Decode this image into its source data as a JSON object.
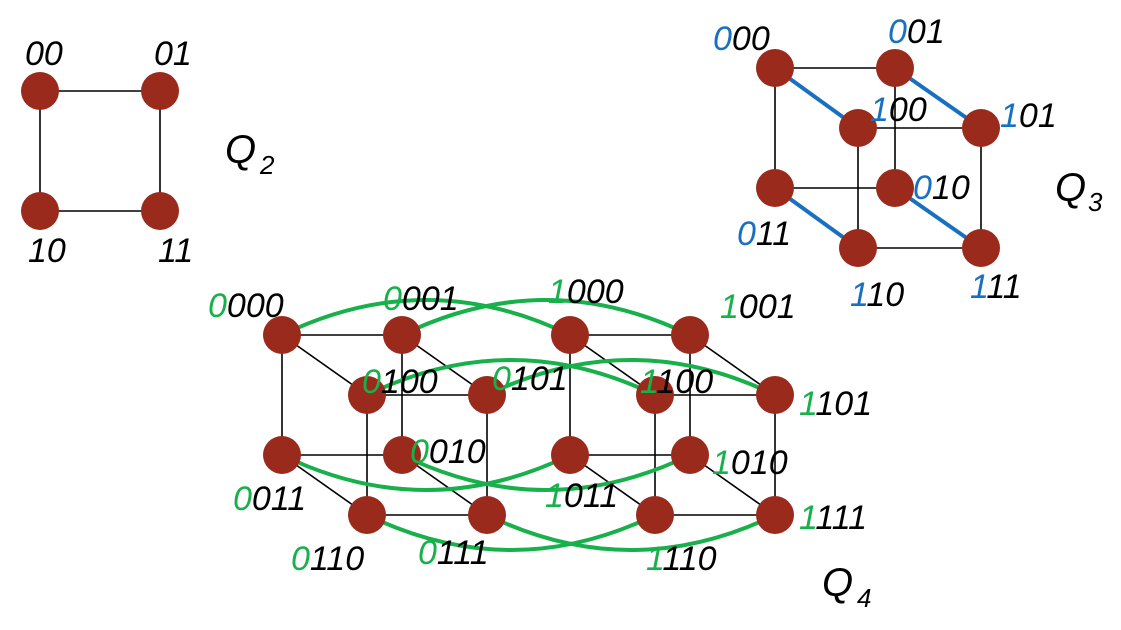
{
  "colors": {
    "node": "#9a2a1c",
    "edge": "#000000",
    "q3_highlight": "#1a70c0",
    "q4_highlight": "#18b04a",
    "label_text": "#000000"
  },
  "hypercubes": [
    {
      "name": "Q",
      "subscript": "2",
      "vertices": [
        {
          "prefix": "",
          "rest": "00"
        },
        {
          "prefix": "",
          "rest": "01"
        },
        {
          "prefix": "",
          "rest": "10"
        },
        {
          "prefix": "",
          "rest": "11"
        }
      ]
    },
    {
      "name": "Q",
      "subscript": "3",
      "vertices": [
        {
          "prefix": "0",
          "rest": "00"
        },
        {
          "prefix": "0",
          "rest": "01"
        },
        {
          "prefix": "1",
          "rest": "00"
        },
        {
          "prefix": "1",
          "rest": "01"
        },
        {
          "prefix": "0",
          "rest": "10"
        },
        {
          "prefix": "0",
          "rest": "11"
        },
        {
          "prefix": "1",
          "rest": "10"
        },
        {
          "prefix": "1",
          "rest": "11"
        }
      ]
    },
    {
      "name": "Q",
      "subscript": "4",
      "vertices": [
        {
          "prefix": "0",
          "rest": "000"
        },
        {
          "prefix": "0",
          "rest": "001"
        },
        {
          "prefix": "0",
          "rest": "100"
        },
        {
          "prefix": "0",
          "rest": "101"
        },
        {
          "prefix": "0",
          "rest": "010"
        },
        {
          "prefix": "0",
          "rest": "011"
        },
        {
          "prefix": "0",
          "rest": "110"
        },
        {
          "prefix": "0",
          "rest": "111"
        },
        {
          "prefix": "1",
          "rest": "000"
        },
        {
          "prefix": "1",
          "rest": "001"
        },
        {
          "prefix": "1",
          "rest": "100"
        },
        {
          "prefix": "1",
          "rest": "101"
        },
        {
          "prefix": "1",
          "rest": "010"
        },
        {
          "prefix": "1",
          "rest": "011"
        },
        {
          "prefix": "1",
          "rest": "110"
        },
        {
          "prefix": "1",
          "rest": "111"
        }
      ]
    }
  ]
}
